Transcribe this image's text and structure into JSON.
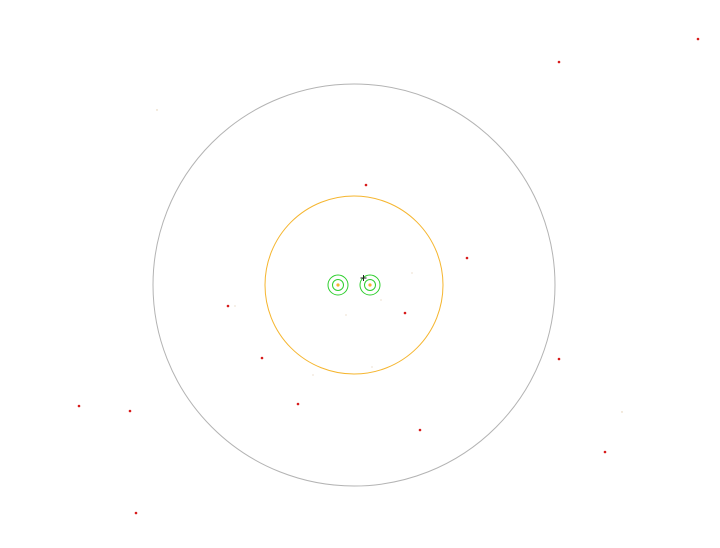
{
  "colors": {
    "background": "#ffffff",
    "outer_ring": "#b3b3b3",
    "inner_ring": "#f5b52e",
    "target_ring": "#2fcf2f",
    "target_core": "#f5b52e",
    "star": "#d81b1b",
    "faint_dot": "#c9a06a",
    "crosshair": "#222222"
  },
  "icons": {
    "crosshair": "crosshair-icon"
  }
}
